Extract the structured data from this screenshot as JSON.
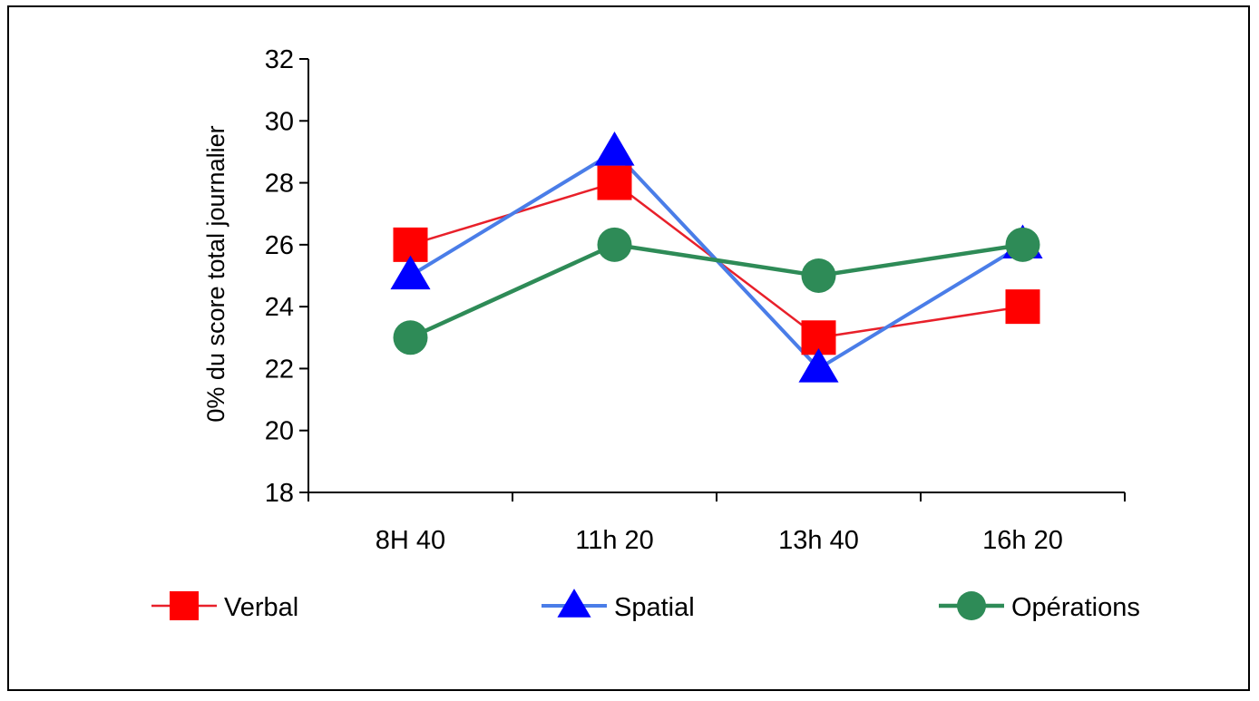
{
  "chart_data": {
    "type": "line",
    "title": "",
    "xlabel": "",
    "ylabel": "0% du score total journalier",
    "categories": [
      "8H 40",
      "11h 20",
      "13h 40",
      "16h 20"
    ],
    "ylim": [
      18,
      32
    ],
    "yticks": [
      18,
      20,
      22,
      24,
      26,
      28,
      30,
      32
    ],
    "grid": false,
    "legend_position": "bottom",
    "series": [
      {
        "name": "Verbal",
        "values": [
          26,
          28,
          23,
          24
        ],
        "color": "#ff0000",
        "marker": "square",
        "line_color": "#e8202a"
      },
      {
        "name": "Spatial",
        "values": [
          25,
          29,
          22,
          26
        ],
        "color": "#0000ff",
        "marker": "triangle",
        "line_color": "#4a7de8"
      },
      {
        "name": "Opérations",
        "values": [
          23,
          26,
          25,
          26
        ],
        "color": "#2e8b57",
        "marker": "circle",
        "line_color": "#2e8b57"
      }
    ]
  }
}
